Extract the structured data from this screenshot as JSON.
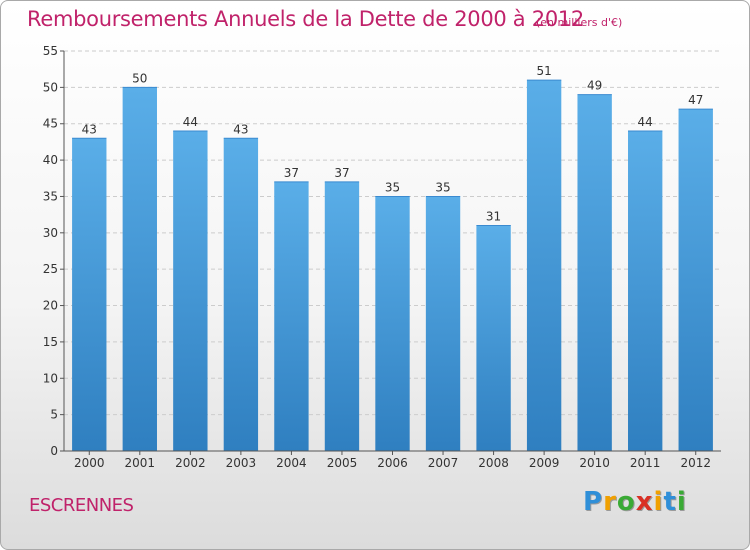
{
  "title": "Remboursements Annuels de la Dette de 2000 à 2012",
  "subtitle": "(en milliers d'€)",
  "commune": "ESCRENNES",
  "logo": {
    "letters": [
      "P",
      "r",
      "o",
      "x",
      "i",
      "t",
      "i"
    ],
    "colors": [
      "#2f8fd8",
      "#f0a000",
      "#3aaa35",
      "#d93025",
      "#f0a000",
      "#2f8fd8",
      "#3aaa35"
    ]
  },
  "colors": {
    "title": "#c0226a",
    "bar_top": "#5aaee8",
    "bar_bottom": "#2f7fc0",
    "grid": "#cccccc",
    "axis": "#555555"
  },
  "chart_data": {
    "type": "bar",
    "categories": [
      "2000",
      "2001",
      "2002",
      "2003",
      "2004",
      "2005",
      "2006",
      "2007",
      "2008",
      "2009",
      "2010",
      "2011",
      "2012"
    ],
    "values": [
      43,
      50,
      44,
      43,
      37,
      37,
      35,
      35,
      31,
      51,
      49,
      44,
      47
    ],
    "title": "Remboursements Annuels de la Dette de 2000 à 2012",
    "xlabel": "",
    "ylabel": "",
    "ylim": [
      0,
      55
    ],
    "yticks": [
      0,
      5,
      10,
      15,
      20,
      25,
      30,
      35,
      40,
      45,
      50,
      55
    ],
    "grid": true,
    "legend": "none"
  }
}
